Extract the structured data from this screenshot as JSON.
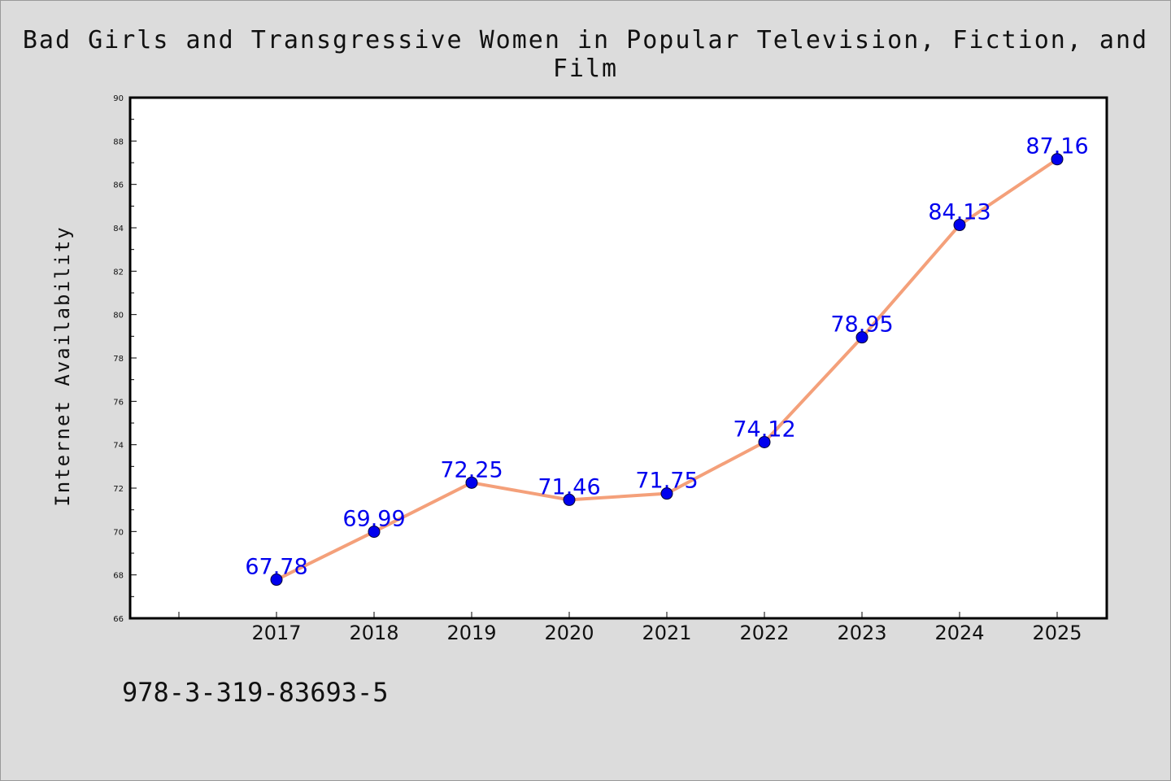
{
  "title": "Bad Girls and Transgressive Women in Popular Television, Fiction, and Film",
  "footer_text": "978-3-319-83693-5",
  "colors": {
    "background": "#dcdcdc",
    "plot_background": "#ffffff",
    "line": "#f4a07a",
    "marker": "#0000ee",
    "label": "#0000ee"
  },
  "chart_data": {
    "type": "line",
    "title": "Bad Girls and Transgressive Women in Popular Television, Fiction, and Film",
    "xlabel": "",
    "ylabel": "Internet Availability",
    "categories": [
      "2017",
      "2018",
      "2019",
      "2020",
      "2021",
      "2022",
      "2023",
      "2024",
      "2025"
    ],
    "values": [
      67.78,
      69.99,
      72.25,
      71.46,
      71.75,
      74.12,
      78.95,
      84.13,
      87.16
    ],
    "data_labels": [
      "67.78",
      "69.99",
      "72.25",
      "71.46",
      "71.75",
      "74.12",
      "78.95",
      "84.13",
      "87.16"
    ],
    "ylim": [
      66,
      90
    ],
    "y_ticks": [
      66,
      68,
      70,
      72,
      74,
      76,
      78,
      80,
      82,
      84,
      86,
      88,
      90
    ],
    "grid": false,
    "legend": "none"
  }
}
